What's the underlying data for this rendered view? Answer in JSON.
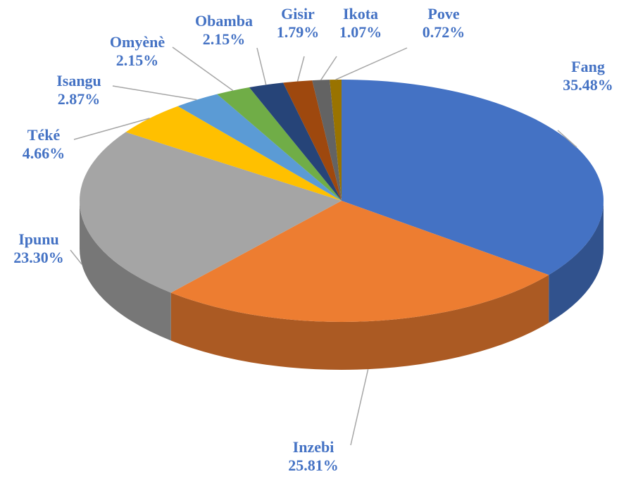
{
  "chart_data": {
    "type": "pie",
    "categories": [
      "Fang",
      "Inzebi",
      "Ipunu",
      "Téké",
      "Isangu",
      "Omyènè",
      "Obamba",
      "Gisir",
      "Ikota",
      "Pove"
    ],
    "values": [
      35.48,
      25.81,
      23.3,
      4.66,
      2.87,
      2.15,
      2.15,
      1.79,
      1.07,
      0.72
    ],
    "value_labels": [
      "35.48%",
      "25.81%",
      "23.30%",
      "4.66%",
      "2.87%",
      "2.15%",
      "2.15%",
      "1.79%",
      "1.07%",
      "0.72%"
    ],
    "colors": [
      "#4472c4",
      "#ed7d31",
      "#a5a5a5",
      "#ffc000",
      "#5b9bd5",
      "#70ad47",
      "#264478",
      "#9e480e",
      "#636363",
      "#997300"
    ]
  }
}
